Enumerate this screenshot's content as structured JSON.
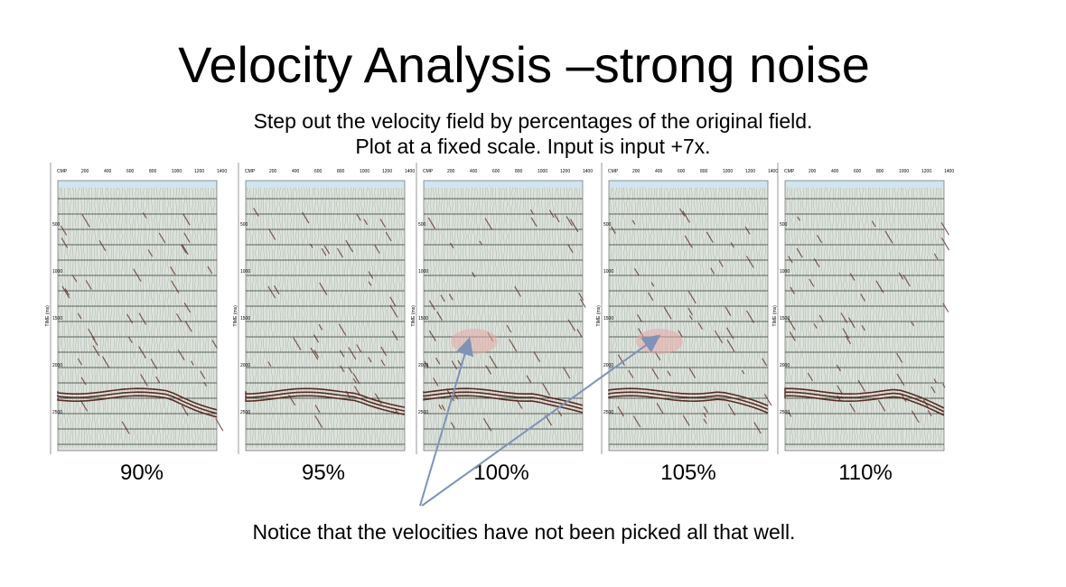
{
  "slide": {
    "title": "Velocity Analysis –strong noise",
    "subtitle_lines": [
      "Step out the velocity field by percentages of the original field.",
      "Plot at a fixed scale. Input is input +7x."
    ],
    "note": "Notice that the velocities have not been picked all that well."
  },
  "panels": [
    {
      "caption": "90%",
      "highlight": false
    },
    {
      "caption": "95%",
      "highlight": false
    },
    {
      "caption": "100%",
      "highlight": true
    },
    {
      "caption": "105%",
      "highlight": true
    },
    {
      "caption": "110%",
      "highlight": false
    }
  ],
  "panel_axis": {
    "cdp_label": "CMP",
    "time_label": "TIME (ms)",
    "x_ticks": [
      "200",
      "400",
      "600",
      "800",
      "1000",
      "1200",
      "1400"
    ],
    "y_ticks": [
      "500",
      "1000",
      "1500",
      "2000",
      "2500"
    ]
  },
  "colors": {
    "seismic_bg": "#dde3dc",
    "trace": "#6f7f74",
    "event": "#5a2a22",
    "highlight": "#e8a9a6",
    "arrow": "#7d93b8"
  }
}
